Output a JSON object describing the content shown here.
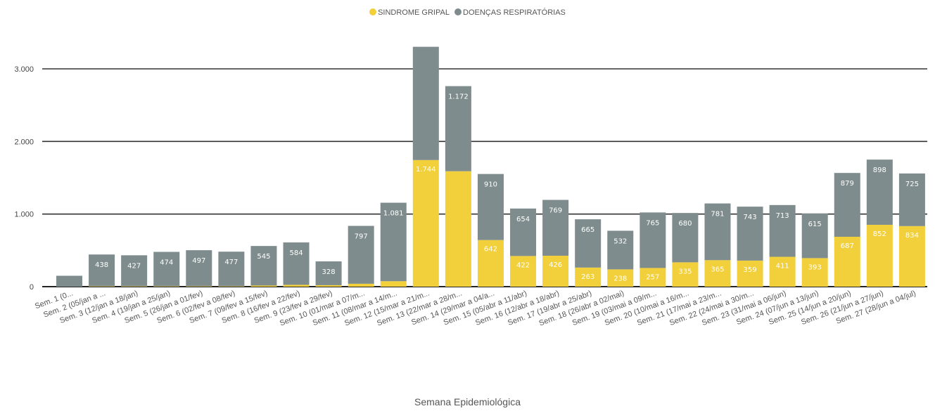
{
  "legend": [
    {
      "label": "SINDROME GRIPAL",
      "color": "#f2d03b"
    },
    {
      "label": "DOENÇAS RESPIRATÓRIAS",
      "color": "#7f8c8d"
    }
  ],
  "chart_data": {
    "type": "bar",
    "stacked": true,
    "title": "",
    "xlabel": "Semana Epidemiológica",
    "ylabel": "",
    "ylim": [
      0,
      3300
    ],
    "yticks": [
      0,
      1000,
      2000,
      3000
    ],
    "ytick_labels": [
      "0",
      "1.000",
      "2.000",
      "3.000"
    ],
    "grid": true,
    "legend_position": "top-center",
    "categories": [
      "Sem. 1 (0...",
      "Sem. 2 (05/jan a ...",
      "Sem. 3 (12/jan a 18/jan)",
      "Sem. 4 (19/jan a 25/jan)",
      "Sem. 5 (26/jan a 01/fev)",
      "Sem. 6 (02/fev a 08/fev)",
      "Sem. 7 (09/fev a 15/fev)",
      "Sem. 8 (16/fev a 22/fev)",
      "Sem. 9 (23/fev a 29/fev)",
      "Sem. 10 (01/mar a 07/m...",
      "Sem. 11 (08/mar a 14/m...",
      "Sem. 12 (15/mar a 21/m...",
      "Sem. 13 (22/mar a 28/m...",
      "Sem. 14 (29/mar a 04/a...",
      "Sem. 15 (05/abr a 11/abr)",
      "Sem. 16 (12/abr a 18/abr)",
      "Sem. 17 (19/abr a 25/abr)",
      "Sem. 18 (26/abr a 02/mai)",
      "Sem. 19 (03/mai a 09/m...",
      "Sem. 20 (10/mai a 16/m...",
      "Sem. 21 (17/mai a 23/m...",
      "Sem. 22 (24/mai a 30/m...",
      "Sem. 23 (31/mai a 06/jun)",
      "Sem. 24 (07/jun a 13/jun)",
      "Sem. 25 (14/jun a 20/jun)",
      "Sem. 26 (21/jun a 27/jun)",
      "Sem. 27 (28/jun a 04/jul)"
    ],
    "series": [
      {
        "name": "SINDROME GRIPAL",
        "color": "#f2d03b",
        "values": [
          0,
          5,
          5,
          5,
          5,
          5,
          15,
          25,
          20,
          40,
          75,
          1744,
          1590,
          642,
          422,
          426,
          263,
          238,
          257,
          335,
          365,
          359,
          411,
          393,
          687,
          852,
          834
        ],
        "labels": [
          "",
          "",
          "",
          "",
          "",
          "",
          "",
          "",
          "",
          "",
          "",
          "1.744",
          "",
          "642",
          "422",
          "426",
          "263",
          "238",
          "257",
          "335",
          "365",
          "359",
          "411",
          "393",
          "687",
          "852",
          "834"
        ]
      },
      {
        "name": "DOENÇAS RESPIRATÓRIAS",
        "color": "#7f8c8d",
        "values": [
          150,
          438,
          427,
          474,
          497,
          477,
          545,
          584,
          328,
          797,
          1081,
          1560,
          1172,
          910,
          654,
          769,
          665,
          532,
          765,
          680,
          781,
          743,
          713,
          615,
          879,
          898,
          725
        ],
        "labels": [
          "",
          "438",
          "427",
          "474",
          "497",
          "477",
          "545",
          "584",
          "328",
          "797",
          "1.081",
          "",
          "1.172",
          "910",
          "654",
          "769",
          "665",
          "532",
          "765",
          "680",
          "781",
          "743",
          "713",
          "615",
          "879",
          "898",
          "725"
        ]
      }
    ]
  }
}
